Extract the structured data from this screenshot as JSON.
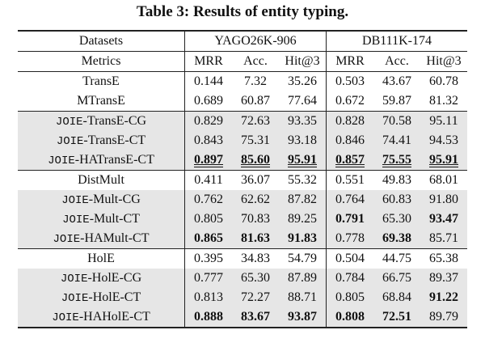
{
  "title": "Table 3: Results of entity typing.",
  "table": {
    "header": {
      "datasets_label": "Datasets",
      "metrics_label": "Metrics",
      "datasets": [
        "YAGO26K-906",
        "DB111K-174"
      ],
      "metrics": [
        "MRR",
        "Acc.",
        "Hit@3",
        "MRR",
        "Acc.",
        "Hit@3"
      ]
    },
    "rows": [
      {
        "prefix": null,
        "name": "TransE",
        "values": [
          "0.144",
          "7.32",
          "35.26",
          "0.503",
          "43.67",
          "60.78"
        ],
        "bold": [
          false,
          false,
          false,
          false,
          false,
          false
        ],
        "underline": false,
        "shaded": false,
        "rule_above": false
      },
      {
        "prefix": null,
        "name": "MTransE",
        "values": [
          "0.689",
          "60.87",
          "77.64",
          "0.672",
          "59.87",
          "81.32"
        ],
        "bold": [
          false,
          false,
          false,
          false,
          false,
          false
        ],
        "underline": false,
        "shaded": false,
        "rule_above": false
      },
      {
        "prefix": "JOIE",
        "name": "-TransE-CG",
        "values": [
          "0.829",
          "72.63",
          "93.35",
          "0.828",
          "70.58",
          "95.11"
        ],
        "bold": [
          false,
          false,
          false,
          false,
          false,
          false
        ],
        "underline": false,
        "shaded": true,
        "rule_above": true
      },
      {
        "prefix": "JOIE",
        "name": "-TransE-CT",
        "values": [
          "0.843",
          "75.31",
          "93.18",
          "0.846",
          "74.41",
          "94.53"
        ],
        "bold": [
          false,
          false,
          false,
          false,
          false,
          false
        ],
        "underline": false,
        "shaded": true,
        "rule_above": false
      },
      {
        "prefix": "JOIE",
        "name": "-HATransE-CT",
        "values": [
          "0.897",
          "85.60",
          "95.91",
          "0.857",
          "75.55",
          "95.91"
        ],
        "bold": [
          true,
          true,
          true,
          true,
          true,
          true
        ],
        "underline": true,
        "shaded": true,
        "rule_above": false
      },
      {
        "prefix": null,
        "name": "DistMult",
        "values": [
          "0.411",
          "36.07",
          "55.32",
          "0.551",
          "49.83",
          "68.01"
        ],
        "bold": [
          false,
          false,
          false,
          false,
          false,
          false
        ],
        "underline": false,
        "shaded": false,
        "rule_above": true
      },
      {
        "prefix": "JOIE",
        "name": "-Mult-CG",
        "values": [
          "0.762",
          "62.62",
          "87.82",
          "0.764",
          "60.83",
          "91.80"
        ],
        "bold": [
          false,
          false,
          false,
          false,
          false,
          false
        ],
        "underline": false,
        "shaded": true,
        "rule_above": false
      },
      {
        "prefix": "JOIE",
        "name": "-Mult-CT",
        "values": [
          "0.805",
          "70.83",
          "89.25",
          "0.791",
          "65.30",
          "93.47"
        ],
        "bold": [
          false,
          false,
          false,
          true,
          false,
          true
        ],
        "underline": false,
        "shaded": true,
        "rule_above": false
      },
      {
        "prefix": "JOIE",
        "name": "-HAMult-CT",
        "values": [
          "0.865",
          "81.63",
          "91.83",
          "0.778",
          "69.38",
          "85.71"
        ],
        "bold": [
          true,
          true,
          true,
          false,
          true,
          false
        ],
        "underline": false,
        "shaded": true,
        "rule_above": false
      },
      {
        "prefix": null,
        "name": "HolE",
        "values": [
          "0.395",
          "34.83",
          "54.79",
          "0.504",
          "44.75",
          "65.38"
        ],
        "bold": [
          false,
          false,
          false,
          false,
          false,
          false
        ],
        "underline": false,
        "shaded": false,
        "rule_above": true
      },
      {
        "prefix": "JOIE",
        "name": "-HolE-CG",
        "values": [
          "0.777",
          "65.30",
          "87.89",
          "0.784",
          "66.75",
          "89.37"
        ],
        "bold": [
          false,
          false,
          false,
          false,
          false,
          false
        ],
        "underline": false,
        "shaded": true,
        "rule_above": false
      },
      {
        "prefix": "JOIE",
        "name": "-HolE-CT",
        "values": [
          "0.813",
          "72.27",
          "88.71",
          "0.805",
          "68.84",
          "91.22"
        ],
        "bold": [
          false,
          false,
          false,
          false,
          false,
          true
        ],
        "underline": false,
        "shaded": true,
        "rule_above": false
      },
      {
        "prefix": "JOIE",
        "name": "-HAHolE-CT",
        "values": [
          "0.888",
          "83.67",
          "93.87",
          "0.808",
          "72.51",
          "89.79"
        ],
        "bold": [
          true,
          true,
          true,
          true,
          true,
          false
        ],
        "underline": false,
        "shaded": true,
        "rule_above": false
      }
    ]
  }
}
